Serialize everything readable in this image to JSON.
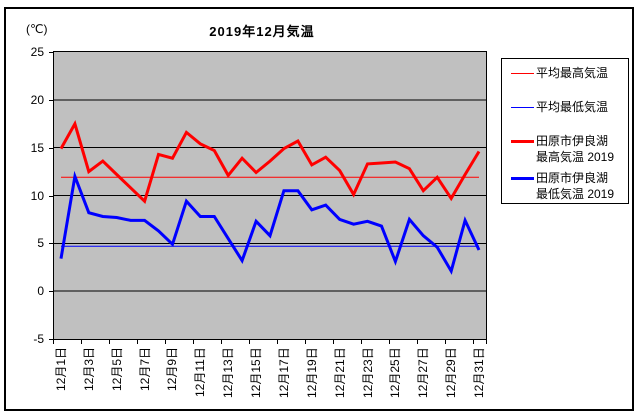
{
  "title": "2019年12月気温",
  "y_unit_label": "(℃)",
  "colors": {
    "max_line": "#ff0000",
    "min_line": "#0000ff",
    "plot_background": "#c0c0c0",
    "grid": "#000000",
    "legend_background": "#ffffff"
  },
  "legend": {
    "items": [
      {
        "label_lines": [
          "平均最高気温"
        ],
        "color": "#ff0000",
        "thickness": 1
      },
      {
        "label_lines": [
          "平均最低気温"
        ],
        "color": "#0000ff",
        "thickness": 1
      },
      {
        "label_lines": [
          "田原市伊良湖",
          "最高気温 2019"
        ],
        "color": "#ff0000",
        "thickness": 3
      },
      {
        "label_lines": [
          "田原市伊良湖",
          "最低気温 2019"
        ],
        "color": "#0000ff",
        "thickness": 3
      }
    ]
  },
  "chart_data": {
    "type": "line",
    "title": "2019年12月気温",
    "ylabel": "(℃)",
    "ylim": [
      -5,
      25
    ],
    "yticks": [
      25,
      20,
      15,
      10,
      5,
      0,
      -5
    ],
    "grid": true,
    "legend_position": "right",
    "x_days": 31,
    "x_tick_labels": [
      "12月1日",
      "12月3日",
      "12月5日",
      "12月7日",
      "12月9日",
      "12月11日",
      "12月13日",
      "12月15日",
      "12月17日",
      "12月19日",
      "12月21日",
      "12月23日",
      "12月25日",
      "12月27日",
      "12月29日",
      "12月31日"
    ],
    "series": [
      {
        "name": "平均最高気温",
        "style": "thin",
        "color": "#ff0000",
        "constant_value": 11.9
      },
      {
        "name": "平均最低気温",
        "style": "thin",
        "color": "#0000ff",
        "constant_value": 4.7
      },
      {
        "name": "田原市伊良湖 最高気温 2019",
        "style": "thick",
        "color": "#ff0000",
        "values": [
          14.9,
          17.5,
          12.5,
          13.6,
          12.2,
          10.8,
          9.4,
          14.3,
          13.9,
          16.6,
          15.4,
          14.7,
          12.1,
          13.9,
          12.4,
          13.6,
          14.9,
          15.7,
          13.2,
          14.0,
          12.6,
          10.1,
          13.3,
          13.4,
          13.5,
          12.8,
          10.5,
          11.9,
          9.7,
          12.2,
          14.6
        ]
      },
      {
        "name": "田原市伊良湖 最低気温 2019",
        "style": "thick",
        "color": "#0000ff",
        "values": [
          3.4,
          12.0,
          8.2,
          7.8,
          7.7,
          7.4,
          7.4,
          6.3,
          4.9,
          9.4,
          7.8,
          7.8,
          5.5,
          3.2,
          7.3,
          5.8,
          10.5,
          10.5,
          8.5,
          9.0,
          7.5,
          7.0,
          7.3,
          6.8,
          3.1,
          7.5,
          5.8,
          4.6,
          2.1,
          7.4,
          4.3
        ]
      }
    ]
  }
}
